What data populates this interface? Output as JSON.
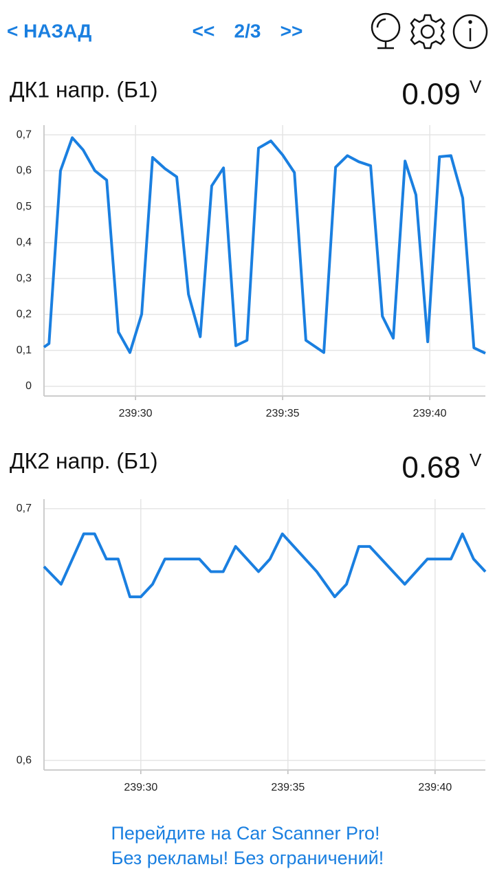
{
  "header": {
    "back": "< НАЗАД",
    "prev": "<<",
    "page": "2/3",
    "next": ">>"
  },
  "chart_data": [
    {
      "type": "line",
      "title": "ДК1 напр. (Б1)",
      "current_value": 0.09,
      "unit": "V",
      "color": "#1a7fe0",
      "grid": true,
      "x": [
        14366.89,
        14367.06,
        14367.45,
        14367.85,
        14368.22,
        14368.62,
        14369.02,
        14369.42,
        14369.81,
        14370.21,
        14370.58,
        14371.0,
        14371.4,
        14371.8,
        14372.2,
        14372.59,
        14372.99,
        14373.41,
        14373.79,
        14374.18,
        14374.6,
        14375.0,
        14375.4,
        14375.79,
        14376.4,
        14376.8,
        14377.2,
        14377.59,
        14377.99,
        14378.39,
        14378.76,
        14379.16,
        14379.53,
        14379.93,
        14380.33,
        14380.72,
        14381.12,
        14381.5,
        14381.89
      ],
      "values": [
        0.109,
        0.119,
        0.6,
        0.692,
        0.658,
        0.6,
        0.574,
        0.151,
        0.094,
        0.201,
        0.637,
        0.606,
        0.583,
        0.256,
        0.138,
        0.558,
        0.608,
        0.113,
        0.128,
        0.663,
        0.683,
        0.644,
        0.595,
        0.128,
        0.094,
        0.61,
        0.642,
        0.625,
        0.614,
        0.195,
        0.134,
        0.627,
        0.533,
        0.124,
        0.639,
        0.642,
        0.524,
        0.107,
        0.092
      ],
      "xlim": [
        14366.89,
        14381.89
      ],
      "xticks": [
        {
          "value": 14370,
          "label": "239:30"
        },
        {
          "value": 14375,
          "label": "239:35"
        },
        {
          "value": 14380,
          "label": "239:40"
        }
      ],
      "ylim": [
        -0.027,
        0.727
      ],
      "yticks": [
        0,
        {
          "value": 0.1,
          "label": "0,1"
        },
        {
          "value": 0.2,
          "label": "0,2"
        },
        {
          "value": 0.3,
          "label": "0,3"
        },
        {
          "value": 0.4,
          "label": "0,4"
        },
        {
          "value": 0.5,
          "label": "0,5"
        },
        {
          "value": 0.6,
          "label": "0,6"
        },
        {
          "value": 0.7,
          "label": "0,7"
        }
      ]
    },
    {
      "type": "line",
      "title": "ДК2 напр. (Б1)",
      "current_value": 0.68,
      "unit": "V",
      "color": "#1a7fe0",
      "grid": true,
      "x": [
        14366.71,
        14367.29,
        14368.06,
        14368.43,
        14368.83,
        14369.23,
        14369.63,
        14370.0,
        14370.4,
        14370.82,
        14371.99,
        14372.38,
        14372.8,
        14373.22,
        14374.0,
        14374.39,
        14374.81,
        14375.98,
        14376.59,
        14376.99,
        14377.41,
        14377.78,
        14378.97,
        14379.74,
        14380.54,
        14380.93,
        14381.31,
        14381.71
      ],
      "values": [
        0.677,
        0.67,
        0.69,
        0.69,
        0.68,
        0.68,
        0.665,
        0.665,
        0.67,
        0.68,
        0.68,
        0.675,
        0.675,
        0.685,
        0.675,
        0.68,
        0.69,
        0.675,
        0.665,
        0.67,
        0.685,
        0.685,
        0.67,
        0.68,
        0.68,
        0.69,
        0.68,
        0.675
      ],
      "xlim": [
        14366.71,
        14381.71
      ],
      "xticks": [
        {
          "value": 14370,
          "label": "239:30"
        },
        {
          "value": 14375,
          "label": "239:35"
        },
        {
          "value": 14380,
          "label": "239:40"
        }
      ],
      "ylim": [
        0.5962,
        0.7038
      ],
      "yticks": [
        {
          "value": 0.6,
          "label": "0,6"
        },
        {
          "value": 0.7,
          "label": "0,7"
        }
      ]
    }
  ],
  "footer": {
    "line1": "Перейдите на Car Scanner Pro!",
    "line2": "Без рекламы! Без ограничений!"
  }
}
